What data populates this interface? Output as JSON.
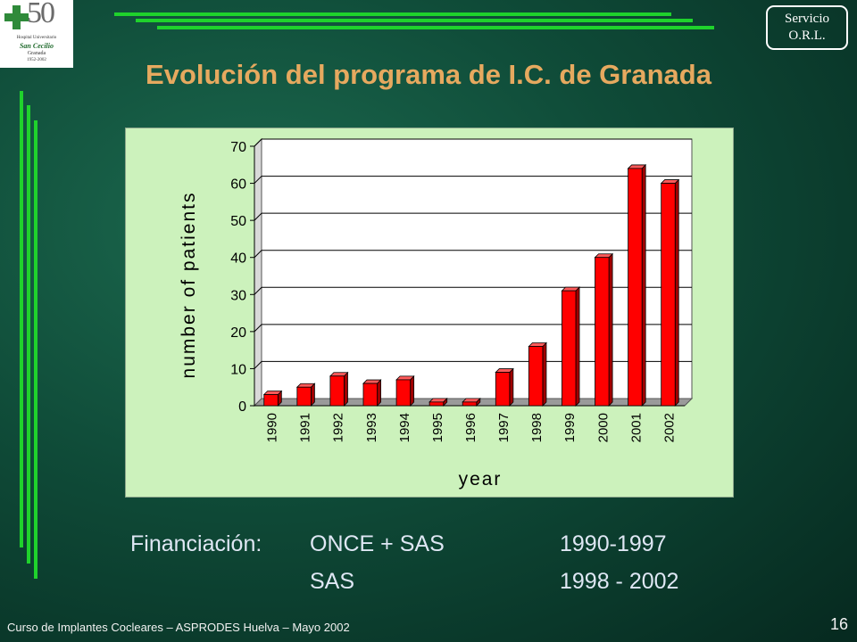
{
  "logo": {
    "number": "50",
    "line1": "Hospital Universitario",
    "line2": "San Cecilio",
    "line3": "Granada",
    "line4": "1952-2002",
    "accent_color": "#2f8a3a"
  },
  "badge": {
    "line1": "Servicio",
    "line2": "O.R.L."
  },
  "title": "Evolución del programa de I.C. de Granada",
  "chart_data": {
    "type": "bar",
    "categories": [
      "1990",
      "1991",
      "1992",
      "1993",
      "1994",
      "1995",
      "1996",
      "1997",
      "1998",
      "1999",
      "2000",
      "2001",
      "2002"
    ],
    "values": [
      3,
      5,
      8,
      6,
      7,
      1,
      1,
      9,
      16,
      31,
      40,
      64,
      60
    ],
    "title": "",
    "xlabel": "year",
    "ylabel": "number of patients",
    "ylim": [
      0,
      70
    ],
    "yticks": [
      0,
      10,
      20,
      30,
      40,
      50,
      60,
      70
    ],
    "grid": true,
    "bar_color": "#ff0000",
    "background_color": "#ccf2bc"
  },
  "financing": {
    "label": "Financiación:",
    "rows": [
      {
        "source": "ONCE + SAS",
        "period": "1990-1997"
      },
      {
        "source": "SAS",
        "period": "1998 - 2002"
      }
    ]
  },
  "footer": {
    "text": "Curso de Implantes Cocleares – ASPRODES Huelva – Mayo 2002",
    "page": "16"
  }
}
